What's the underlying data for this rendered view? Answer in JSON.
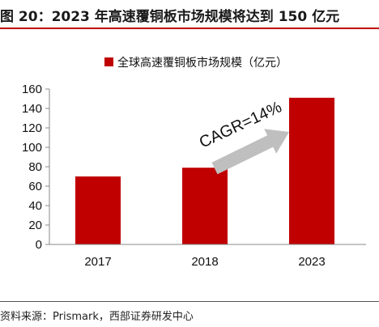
{
  "figure_title": "图 20：2023 年高速覆铜板市场规模将达到 150 亿元",
  "source_note": "资料来源：Prismark，西部证券研发中心",
  "chart_data": {
    "type": "bar",
    "categories": [
      "2017",
      "2018",
      "2023"
    ],
    "series": [
      {
        "name": "全球高速覆铜板市场规模（亿元）",
        "values": [
          70,
          79,
          151
        ],
        "color": "#c00000"
      }
    ],
    "ylim": [
      0,
      160
    ],
    "yticks": [
      0,
      20,
      40,
      60,
      80,
      100,
      120,
      140,
      160
    ],
    "grid": false,
    "legend_position": "top-center",
    "annotation": {
      "text": "CAGR=14%",
      "arrow": "from-2018-to-2023",
      "arrow_color": "#bfbfbf"
    }
  }
}
